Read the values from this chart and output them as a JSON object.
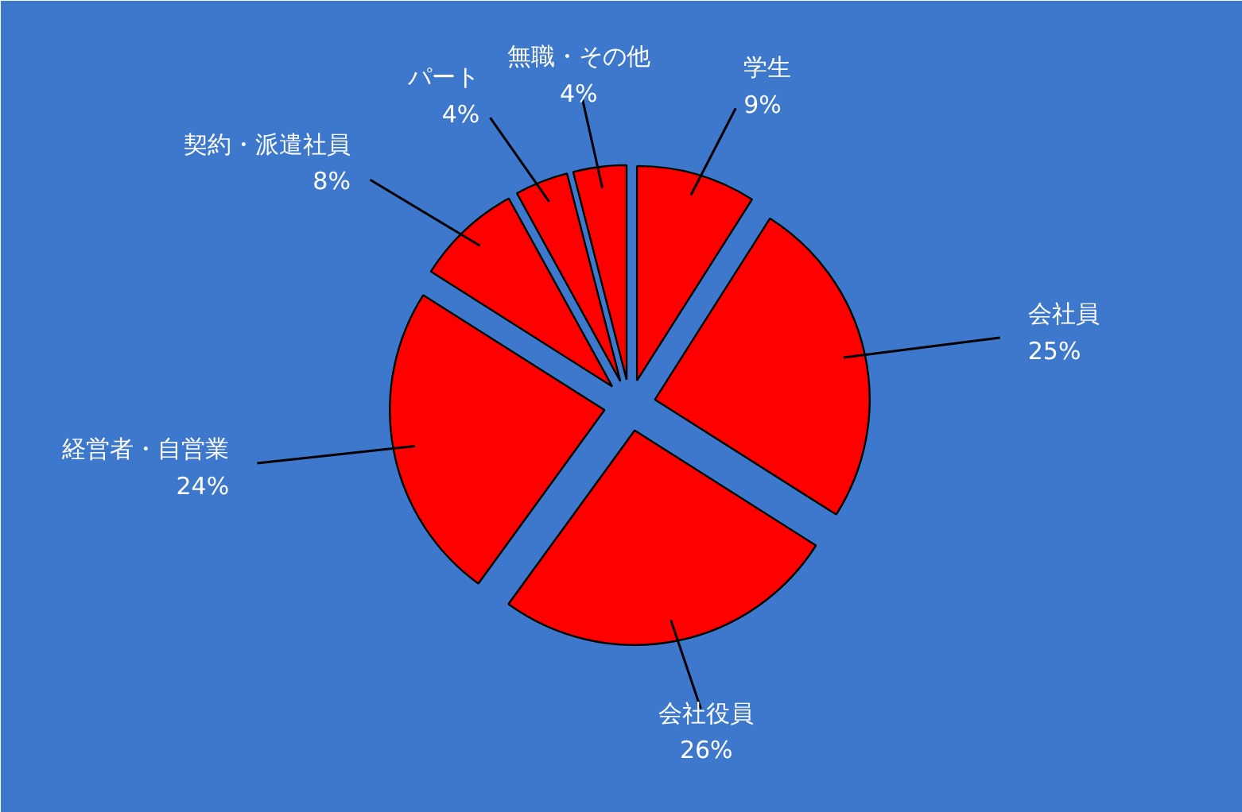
{
  "chart_data": {
    "type": "pie",
    "categories": [
      "学生",
      "会社員",
      "会社役員",
      "経営者・自営業",
      "契約・派遣社員",
      "パート",
      "無職・その他"
    ],
    "values": [
      9,
      25,
      26,
      24,
      8,
      4,
      4
    ],
    "value_labels": [
      "9%",
      "25%",
      "26%",
      "24%",
      "8%",
      "4%",
      "4%"
    ],
    "colors": [
      "#ff0000",
      "#ff0000",
      "#ff0000",
      "#ff0000",
      "#ff0000",
      "#ff0000",
      "#ff0000"
    ]
  }
}
